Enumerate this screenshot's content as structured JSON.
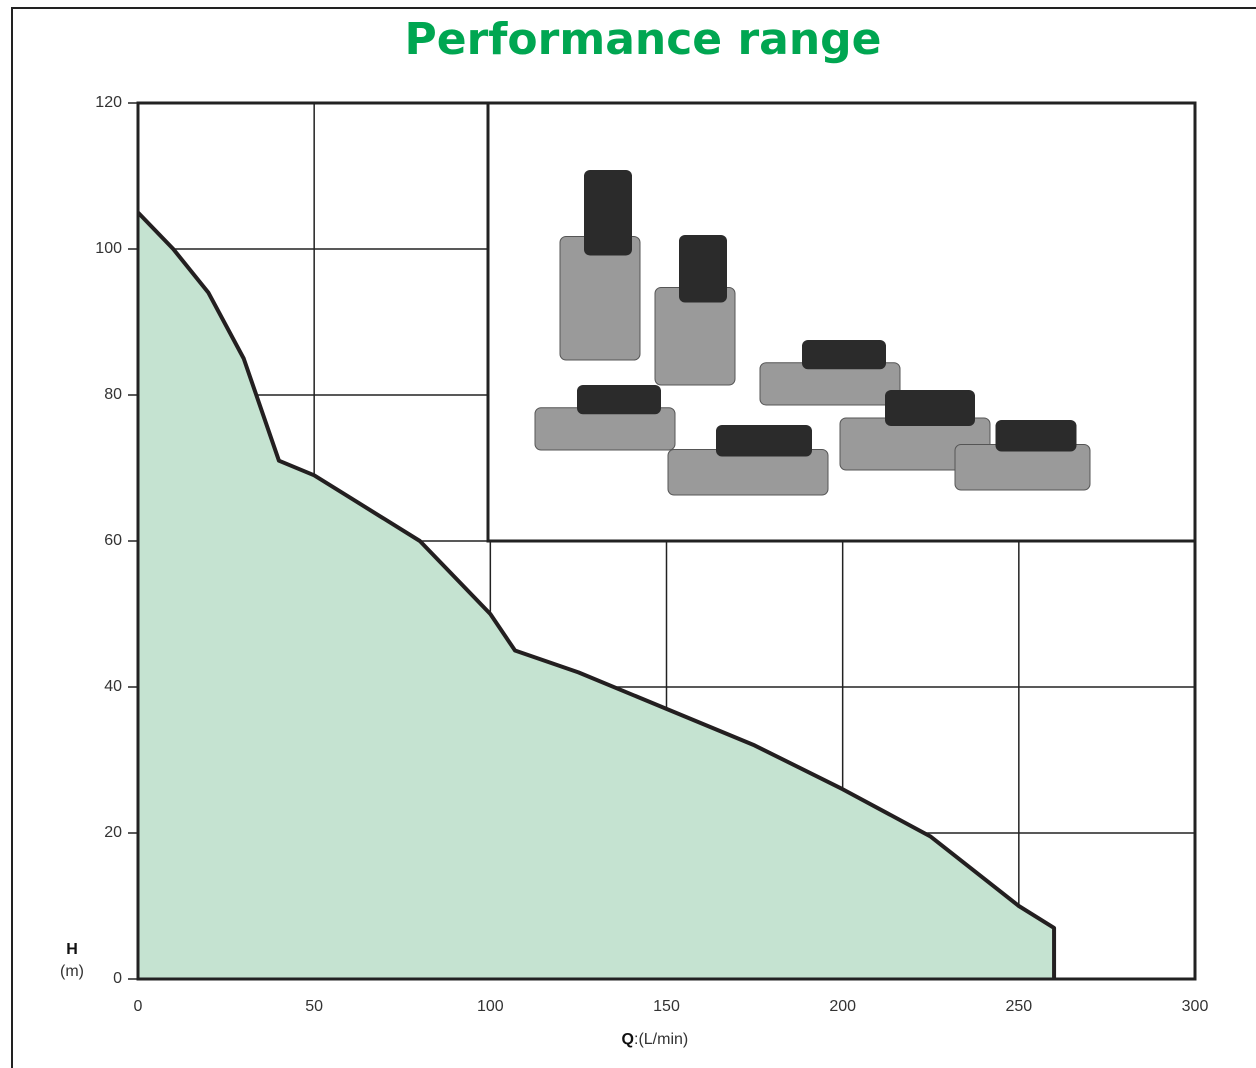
{
  "chart_data": {
    "type": "area",
    "title": "Performance range",
    "x_label_bold": "Q",
    "x_label": ":(L/min)",
    "y_label_bold": "H",
    "y_label": "(m)",
    "x": [
      0,
      10,
      20,
      30,
      40,
      50,
      60,
      70,
      80,
      90,
      100,
      107,
      125,
      150,
      175,
      200,
      225,
      250,
      260,
      260
    ],
    "values": [
      105,
      100,
      94,
      85,
      71,
      69,
      66,
      63,
      60,
      55,
      50,
      45,
      42,
      37,
      32,
      26,
      19.5,
      10,
      7,
      0
    ],
    "color": "#c5e3d1",
    "line_color": "#231f20",
    "xlim": [
      0,
      300
    ],
    "xticks": [
      0,
      50,
      100,
      150,
      200,
      250,
      300
    ],
    "ylim": [
      0,
      120
    ],
    "yticks": [
      0,
      20,
      40,
      60,
      80,
      100,
      120
    ],
    "grid": true
  }
}
